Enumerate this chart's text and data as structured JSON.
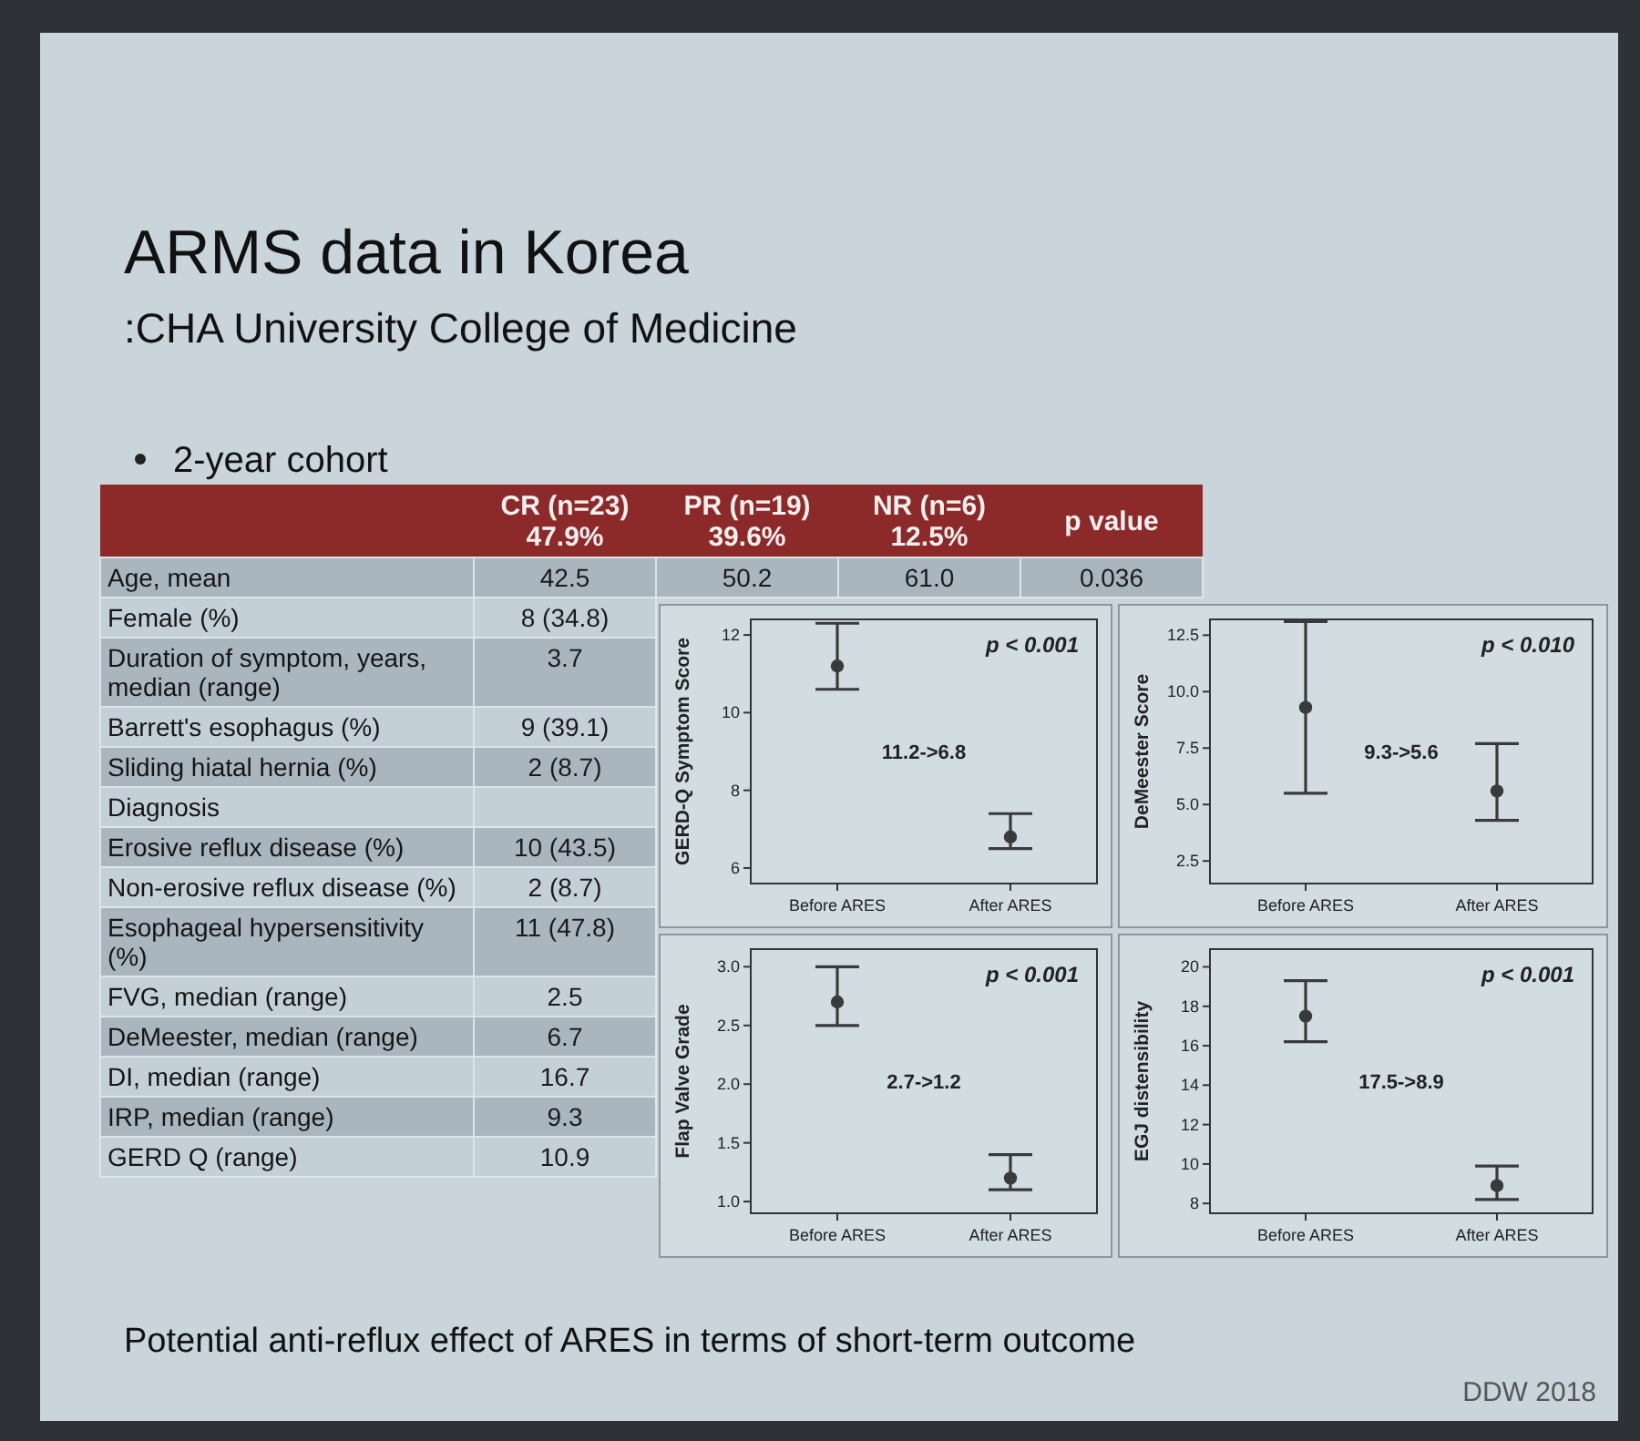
{
  "chart_data": [
    {
      "type": "other",
      "title": "ARMS data in Korea",
      "subtitle": ":CHA University College of Medicine",
      "annotations": [
        "2-year cohort",
        "Potential anti-reflux effect of ARES in terms of short-term outcome",
        "DDW 2018"
      ],
      "categories": [
        "CR (n=23) 47.9%",
        "PR (n=19) 39.6%",
        "NR (n=6) 12.5%",
        "p value"
      ],
      "y_categories": [
        "Age, mean",
        "Female (%)",
        "Duration of symptom, years, median (range)",
        "Barrett's esophagus (%)",
        "Sliding hiatal hernia (%)",
        "Diagnosis",
        "Erosive reflux disease (%)",
        "Non-erosive reflux disease (%)",
        "Esophageal hypersensitivity (%)",
        "FVG, median (range)",
        "DeMeester, median (range)",
        "DI, median (range)",
        "IRP, median (range)",
        "GERD Q (range)"
      ],
      "cell_labels": [
        [
          "42.5",
          "50.2",
          "61.0",
          "0.036"
        ],
        [
          "8 (34.8)",
          null,
          null,
          null
        ],
        [
          "3.7",
          null,
          null,
          null
        ],
        [
          "9 (39.1)",
          null,
          null,
          null
        ],
        [
          "2 (8.7)",
          null,
          null,
          null
        ],
        [
          null,
          null,
          null,
          null
        ],
        [
          "10 (43.5)",
          null,
          null,
          null
        ],
        [
          "2 (8.7)",
          null,
          null,
          null
        ],
        [
          "11 (47.8)",
          null,
          null,
          null
        ],
        [
          "2.5",
          null,
          null,
          null
        ],
        [
          "6.7",
          null,
          null,
          null
        ],
        [
          "16.7",
          null,
          null,
          null
        ],
        [
          "9.3",
          null,
          null,
          null
        ],
        [
          "10.9",
          null,
          null,
          null
        ]
      ]
    },
    {
      "type": "scatter",
      "ylabel": "GERD-Q Symptom Score",
      "categories": [
        "Before ARES",
        "After ARES"
      ],
      "series": [
        {
          "color": "#3a3a3a",
          "values": [
            11.2,
            6.8
          ],
          "errors": [
            [
              10.6,
              12.3
            ],
            [
              6.5,
              7.4
            ]
          ]
        }
      ],
      "ylim": [
        5.6,
        12.4
      ],
      "yticks": [
        6,
        8,
        10,
        12
      ],
      "marker": "circle",
      "annotations": [
        "p < 0.001",
        "11.2->6.8"
      ]
    },
    {
      "type": "scatter",
      "ylabel": "DeMeester Score",
      "categories": [
        "Before ARES",
        "After ARES"
      ],
      "series": [
        {
          "color": "#3a3a3a",
          "values": [
            9.3,
            5.6
          ],
          "errors": [
            [
              5.5,
              13.1
            ],
            [
              4.3,
              7.7
            ]
          ]
        }
      ],
      "ylim": [
        1.5,
        13.2
      ],
      "yticks": [
        2.5,
        {
          "value": 5,
          "label": "5.0"
        },
        7.5,
        {
          "value": 10,
          "label": "10.0"
        },
        12.5
      ],
      "marker": "circle",
      "annotations": [
        "p < 0.010",
        "9.3->5.6"
      ]
    },
    {
      "type": "scatter",
      "ylabel": "Flap Valve Grade",
      "categories": [
        "Before ARES",
        "After ARES"
      ],
      "series": [
        {
          "color": "#3a3a3a",
          "values": [
            2.7,
            1.2
          ],
          "errors": [
            [
              2.5,
              3.0
            ],
            [
              1.1,
              1.4
            ]
          ]
        }
      ],
      "ylim": [
        0.9,
        3.15
      ],
      "yticks": [
        {
          "value": 1,
          "label": "1.0"
        },
        1.5,
        {
          "value": 2,
          "label": "2.0"
        },
        2.5,
        {
          "value": 3,
          "label": "3.0"
        }
      ],
      "marker": "circle",
      "annotations": [
        "p < 0.001",
        "2.7->1.2"
      ]
    },
    {
      "type": "scatter",
      "ylabel": "EGJ distensibility",
      "categories": [
        "Before ARES",
        "After ARES"
      ],
      "series": [
        {
          "color": "#3a3a3a",
          "values": [
            17.5,
            8.9
          ],
          "errors": [
            [
              16.2,
              19.3
            ],
            [
              8.2,
              9.9
            ]
          ]
        }
      ],
      "ylim": [
        7.5,
        20.9
      ],
      "yticks": [
        8,
        10,
        12,
        14,
        16,
        18,
        20
      ],
      "marker": "circle",
      "annotations": [
        "p < 0.001",
        "17.5->8.9"
      ]
    }
  ]
}
